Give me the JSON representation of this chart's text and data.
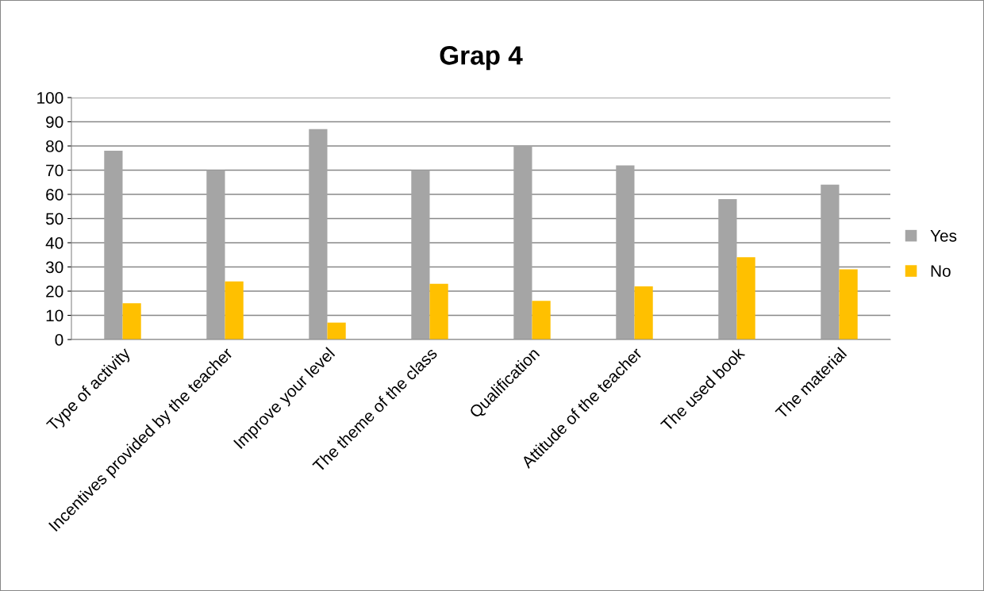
{
  "chart_data": {
    "type": "bar",
    "title": "Grap 4",
    "categories": [
      "Type of activity",
      "Incentives provided by the teacher",
      "Improve your level",
      "The theme of the class",
      "Qualification",
      "Attitude of the teacher",
      "The used book",
      "The material"
    ],
    "series": [
      {
        "name": "Yes",
        "color": "#a5a5a5",
        "values": [
          78,
          70,
          87,
          70,
          80,
          72,
          58,
          64
        ]
      },
      {
        "name": "No",
        "color": "#ffc000",
        "values": [
          15,
          24,
          7,
          23,
          16,
          22,
          34,
          29
        ]
      }
    ],
    "ylim": [
      0,
      100
    ],
    "yticks": [
      0,
      10,
      20,
      30,
      40,
      50,
      60,
      70,
      80,
      90,
      100
    ],
    "grid": "y",
    "legend": "right"
  }
}
